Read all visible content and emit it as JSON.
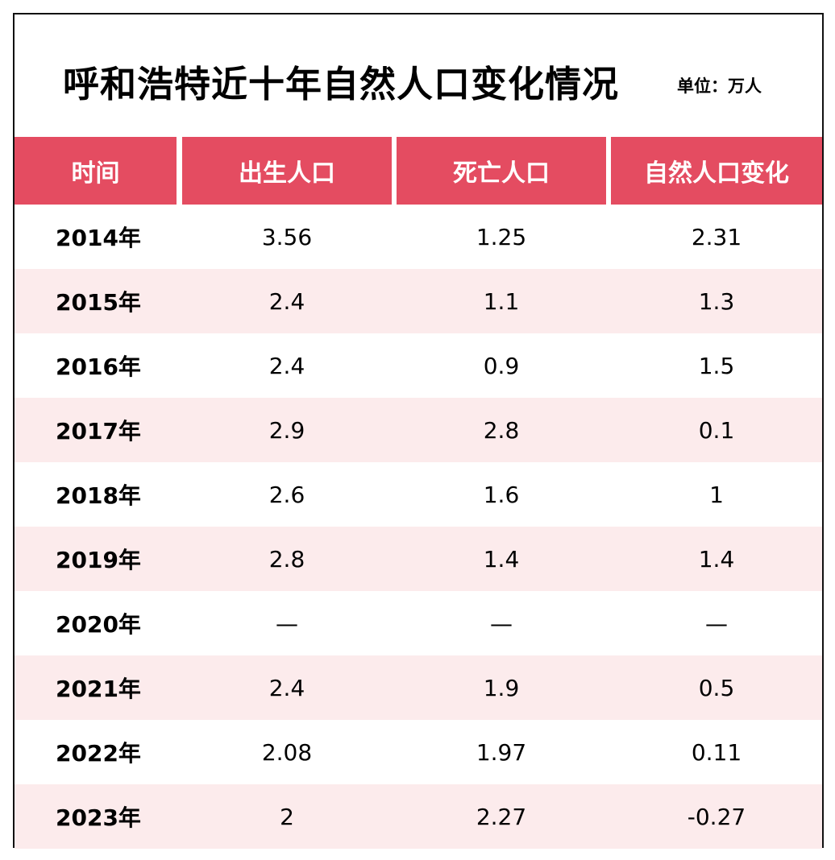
{
  "chart_data": {
    "type": "table",
    "title": "呼和浩特近十年自然人口变化情况",
    "unit_label": "单位：万人",
    "columns": [
      "时间",
      "出生人口",
      "死亡人口",
      "自然人口变化"
    ],
    "rows": [
      [
        "2014年",
        "3.56",
        "1.25",
        "2.31"
      ],
      [
        "2015年",
        "2.4",
        "1.1",
        "1.3"
      ],
      [
        "2016年",
        "2.4",
        "0.9",
        "1.5"
      ],
      [
        "2017年",
        "2.9",
        "2.8",
        "0.1"
      ],
      [
        "2018年",
        "2.6",
        "1.6",
        "1"
      ],
      [
        "2019年",
        "2.8",
        "1.4",
        "1.4"
      ],
      [
        "2020年",
        "—",
        "—",
        "—"
      ],
      [
        "2021年",
        "2.4",
        "1.9",
        "0.5"
      ],
      [
        "2022年",
        "2.08",
        "1.97",
        "0.11"
      ],
      [
        "2023年",
        "2",
        "2.27",
        "-0.27"
      ]
    ],
    "colors": {
      "header_bg": "#e44c61",
      "header_text": "#ffffff",
      "row_alt_bg": "#fcebec",
      "row_bg": "#ffffff"
    }
  }
}
